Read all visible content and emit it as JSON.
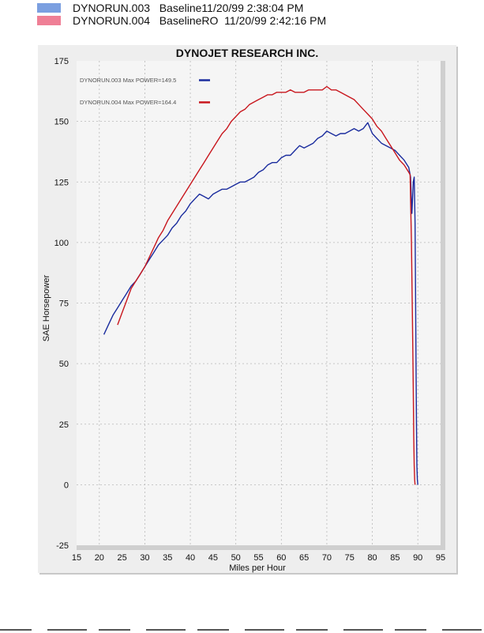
{
  "legend": [
    {
      "run": "DYNORUN.003",
      "description": "Baseline11/20/99 2:38:04 PM",
      "color": "#7b9fe0"
    },
    {
      "run": "DYNORUN.004",
      "description": "BaselineRO  11/20/99 2:42:16 PM",
      "color": "#ef7f96"
    }
  ],
  "chart_data": {
    "type": "line",
    "title": "DYNOJET RESEARCH INC.",
    "xlabel": "Miles per Hour",
    "ylabel": "SAE Horsepower",
    "xlim": [
      15,
      95
    ],
    "ylim": [
      -25,
      175
    ],
    "xticks": [
      15,
      20,
      25,
      30,
      35,
      40,
      45,
      50,
      55,
      60,
      65,
      70,
      75,
      80,
      85,
      90,
      95
    ],
    "yticks": [
      -25,
      0,
      25,
      50,
      75,
      100,
      125,
      150,
      175
    ],
    "grid": true,
    "legend_position": "top-left",
    "series": [
      {
        "name": "DYNORUN.003",
        "label": "DYNORUN.003  Max POWER=149.5",
        "color": "#1a2c9e",
        "x": [
          21,
          22,
          23,
          24,
          25,
          26,
          27,
          28,
          29,
          30,
          31,
          32,
          33,
          34,
          35,
          36,
          37,
          38,
          39,
          40,
          41,
          42,
          43,
          44,
          45,
          46,
          47,
          48,
          49,
          50,
          51,
          52,
          53,
          54,
          55,
          56,
          57,
          58,
          59,
          60,
          61,
          62,
          63,
          64,
          65,
          66,
          67,
          68,
          69,
          70,
          71,
          72,
          73,
          74,
          75,
          76,
          77,
          78,
          79,
          80,
          81,
          82,
          83,
          84,
          85,
          86,
          87,
          88,
          88.4,
          88.7,
          89,
          89.2,
          89.4,
          89.5,
          89.6,
          89.7,
          89.8,
          89.9,
          90
        ],
        "y": [
          62,
          66,
          70,
          73,
          76,
          79,
          82,
          84,
          87,
          90,
          93,
          96,
          99,
          101,
          103,
          106,
          108,
          111,
          113,
          116,
          118,
          120,
          119,
          118,
          120,
          121,
          122,
          122,
          123,
          124,
          125,
          125,
          126,
          127,
          129,
          130,
          132,
          133,
          133,
          135,
          136,
          136,
          138,
          140,
          139,
          140,
          141,
          143,
          144,
          146,
          145,
          144,
          145,
          145,
          146,
          147,
          146,
          147,
          149.5,
          145,
          143,
          141,
          140,
          139,
          138,
          136,
          134,
          131,
          127,
          112,
          125,
          127,
          108,
          80,
          50,
          25,
          8,
          2,
          0
        ]
      },
      {
        "name": "DYNORUN.004",
        "label": "DYNORUN.004  Max POWER=164.4",
        "color": "#c8161d",
        "x": [
          24,
          25,
          26,
          27,
          28,
          29,
          30,
          31,
          32,
          33,
          34,
          35,
          36,
          37,
          38,
          39,
          40,
          41,
          42,
          43,
          44,
          45,
          46,
          47,
          48,
          49,
          50,
          51,
          52,
          53,
          54,
          55,
          56,
          57,
          58,
          59,
          60,
          61,
          62,
          63,
          64,
          65,
          66,
          67,
          68,
          69,
          70,
          71,
          72,
          73,
          74,
          75,
          76,
          77,
          78,
          79,
          80,
          81,
          82,
          83,
          84,
          85,
          86,
          87,
          88,
          88.3,
          88.6,
          88.8,
          89,
          89.1,
          89.2,
          89.3,
          89.4
        ],
        "y": [
          66,
          71,
          76,
          81,
          84,
          87,
          90,
          94,
          98,
          102,
          105,
          109,
          112,
          115,
          118,
          121,
          124,
          127,
          130,
          133,
          136,
          139,
          142,
          145,
          147,
          150,
          152,
          154,
          155,
          157,
          158,
          159,
          160,
          161,
          161,
          162,
          162,
          162,
          163,
          162,
          162,
          162,
          163,
          163,
          163,
          163,
          164.4,
          163,
          163,
          162,
          161,
          160,
          159,
          157,
          155,
          153,
          151,
          148,
          146,
          143,
          140,
          137,
          134,
          132,
          129,
          128,
          100,
          70,
          40,
          20,
          8,
          2,
          0
        ]
      }
    ]
  }
}
